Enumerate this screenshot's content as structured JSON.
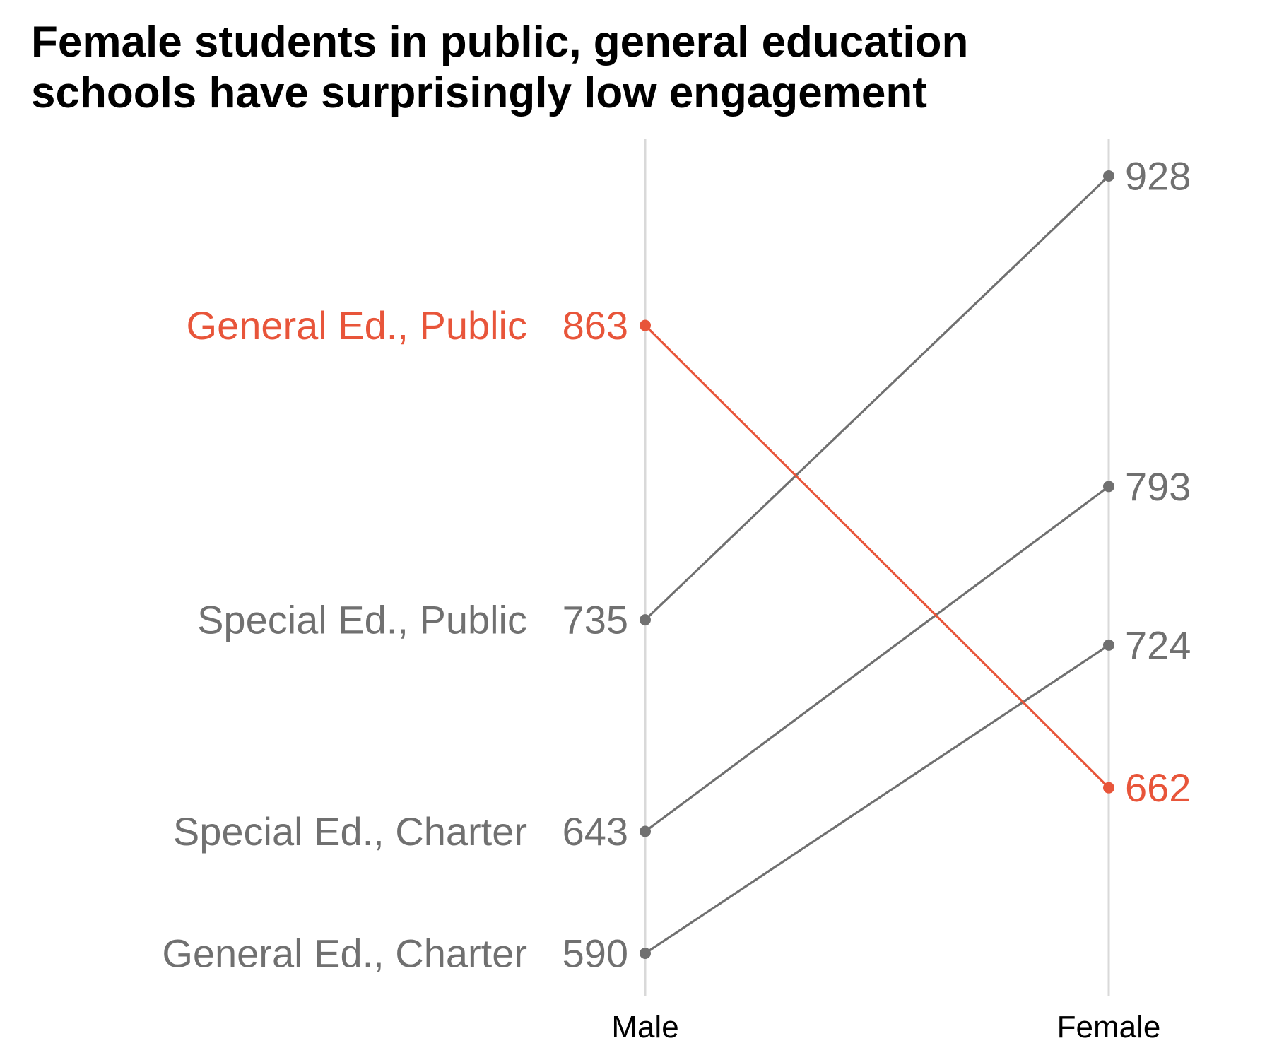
{
  "title_lines": [
    "Female students in public, general education",
    "schools have surprisingly low engagement"
  ],
  "colors": {
    "highlight": "#E8553A",
    "default": "#707070",
    "axis_line": "#d9d9d9"
  },
  "chart_data": {
    "type": "line",
    "title": "Female students in public, general education schools have surprisingly low engagement",
    "categories": [
      "Male",
      "Female"
    ],
    "ylim": [
      590,
      928
    ],
    "grid": false,
    "series": [
      {
        "name": "General Ed., Public",
        "values": [
          863,
          662
        ],
        "highlight": true
      },
      {
        "name": "Special Ed., Public",
        "values": [
          735,
          928
        ],
        "highlight": false
      },
      {
        "name": "Special Ed., Charter",
        "values": [
          643,
          793
        ],
        "highlight": false
      },
      {
        "name": "General Ed., Charter",
        "values": [
          590,
          724
        ],
        "highlight": false
      }
    ]
  }
}
